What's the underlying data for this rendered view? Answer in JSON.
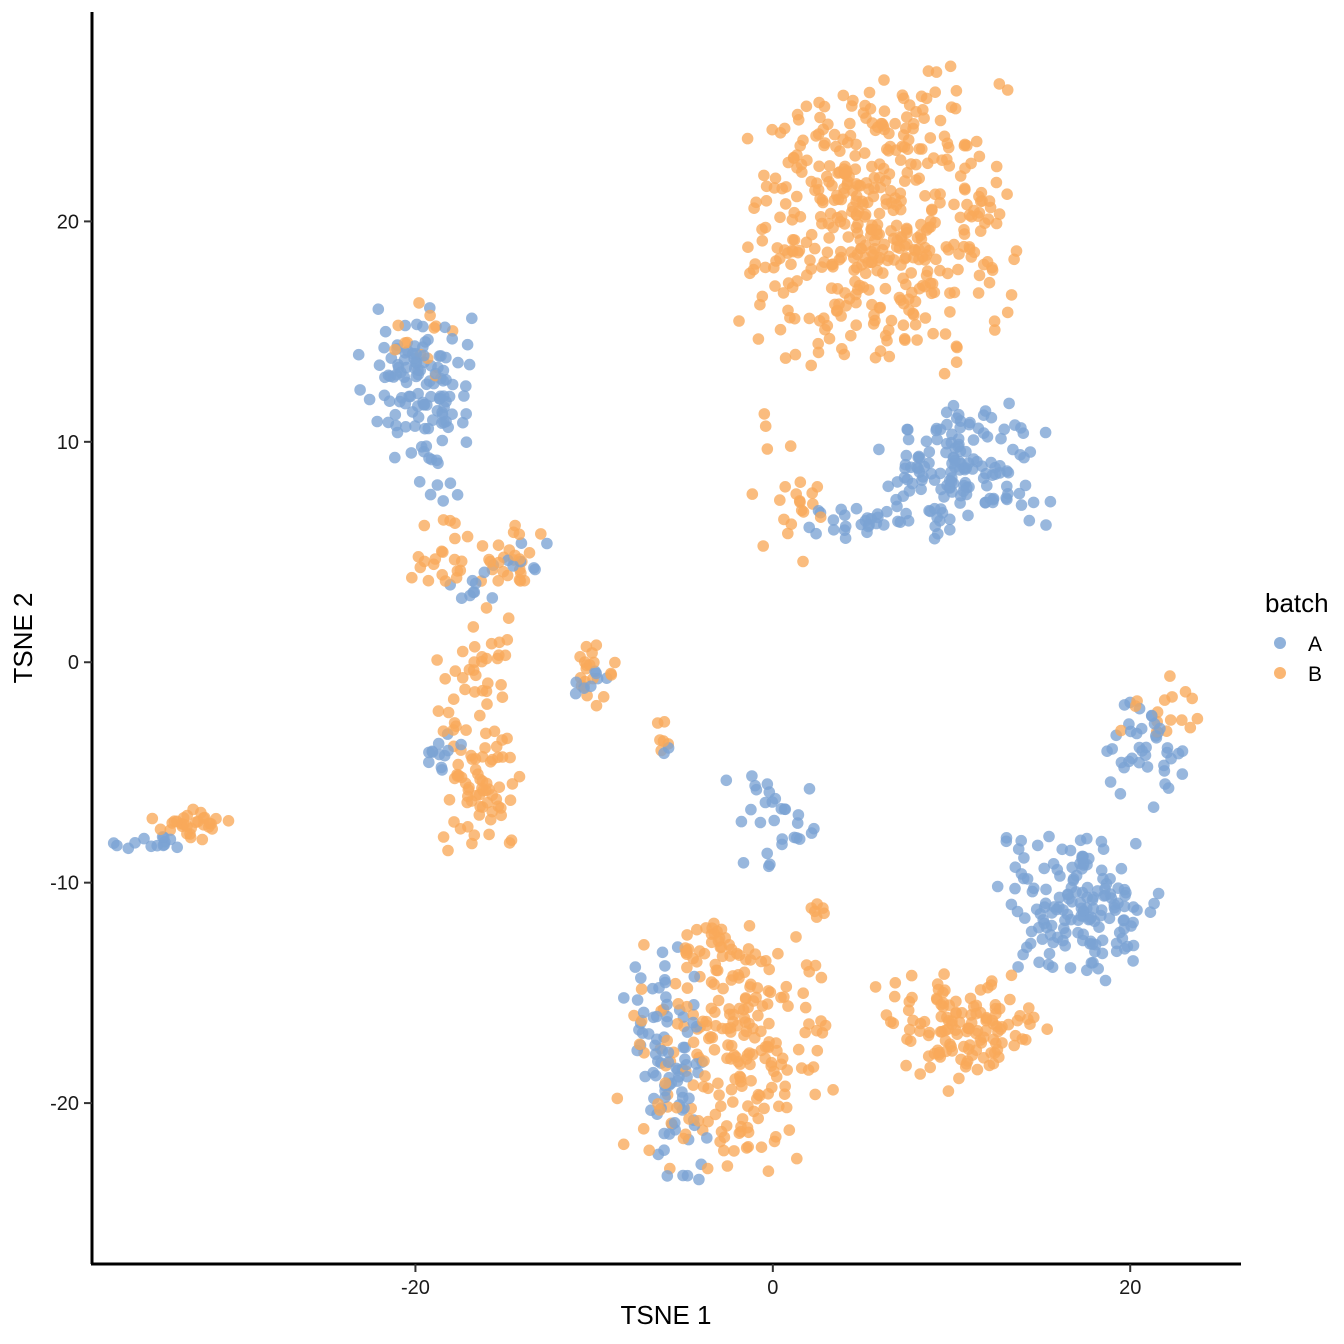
{
  "chart_data": {
    "type": "scatter",
    "xlabel": "TSNE 1",
    "ylabel": "TSNE 2",
    "xlim": [
      -38.1,
      26.2
    ],
    "ylim": [
      -27.3,
      29.5
    ],
    "xticks": [
      -20,
      0,
      20
    ],
    "yticks": [
      -20,
      -10,
      0,
      10,
      20
    ],
    "grid": false,
    "legend": {
      "title": "batch",
      "position": "right"
    },
    "series": [
      {
        "name": "A",
        "color": "#7BA3D4",
        "clusters": [
          {
            "center": [
              -19.9,
              12.9
            ],
            "spread": [
              1.5,
              1.6
            ],
            "n": 110
          },
          {
            "center": [
              -19.2,
              9.0
            ],
            "spread": [
              0.9,
              1.2
            ],
            "n": 16
          },
          {
            "center": [
              -16.6,
              3.6
            ],
            "spread": [
              1.0,
              0.7
            ],
            "n": 10
          },
          {
            "center": [
              -13.8,
              5.0
            ],
            "spread": [
              0.6,
              0.5
            ],
            "n": 7
          },
          {
            "center": [
              -18.2,
              -4.5
            ],
            "spread": [
              0.7,
              0.8
            ],
            "n": 12
          },
          {
            "center": [
              -10.1,
              -0.8
            ],
            "spread": [
              0.8,
              0.4
            ],
            "n": 8
          },
          {
            "center": [
              -6.1,
              -4.0
            ],
            "spread": [
              0.2,
              0.3
            ],
            "n": 2
          },
          {
            "center": [
              10.7,
              8.8
            ],
            "spread": [
              2.2,
              1.5
            ],
            "n": 150
          },
          {
            "center": [
              5.0,
              6.4
            ],
            "spread": [
              1.6,
              0.5
            ],
            "n": 28
          },
          {
            "center": [
              17.3,
              -11.0
            ],
            "spread": [
              2.3,
              1.6
            ],
            "n": 160
          },
          {
            "center": [
              20.8,
              -4.0
            ],
            "spread": [
              1.2,
              1.2
            ],
            "n": 40
          },
          {
            "center": [
              0.2,
              -7.0
            ],
            "spread": [
              1.8,
              1.1
            ],
            "n": 30
          },
          {
            "center": [
              -6.3,
              -15.8
            ],
            "spread": [
              1.1,
              1.5
            ],
            "n": 42
          },
          {
            "center": [
              -5.4,
              -20.5
            ],
            "spread": [
              0.8,
              1.5
            ],
            "n": 46
          },
          {
            "center": [
              -35.0,
              -8.1
            ],
            "spread": [
              1.2,
              0.25
            ],
            "n": 14
          }
        ]
      },
      {
        "name": "B",
        "color": "#F9A95A",
        "clusters": [
          {
            "center": [
              6.0,
              20.0
            ],
            "spread": [
              3.6,
              3.3
            ],
            "n": 470
          },
          {
            "center": [
              0.8,
              8.0
            ],
            "spread": [
              0.9,
              1.6
            ],
            "n": 22
          },
          {
            "center": [
              -19.2,
              14.5
            ],
            "spread": [
              1.6,
              1.2
            ],
            "n": 12
          },
          {
            "center": [
              -18.6,
              5.0
            ],
            "spread": [
              0.8,
              0.9
            ],
            "n": 22
          },
          {
            "center": [
              -14.3,
              4.8
            ],
            "spread": [
              1.0,
              0.7
            ],
            "n": 26
          },
          {
            "center": [
              -16.6,
              -0.5
            ],
            "spread": [
              1.2,
              1.5
            ],
            "n": 35
          },
          {
            "center": [
              -16.3,
              -5.5
            ],
            "spread": [
              1.1,
              1.5
            ],
            "n": 70
          },
          {
            "center": [
              -10.2,
              -0.8
            ],
            "spread": [
              0.7,
              0.8
            ],
            "n": 20
          },
          {
            "center": [
              -6.2,
              -3.5
            ],
            "spread": [
              0.2,
              0.4
            ],
            "n": 6
          },
          {
            "center": [
              -32.6,
              -7.4
            ],
            "spread": [
              1.2,
              0.35
            ],
            "n": 30
          },
          {
            "center": [
              -2.0,
              -17.5
            ],
            "spread": [
              2.7,
              2.6
            ],
            "n": 220
          },
          {
            "center": [
              -3.2,
              -12.8
            ],
            "spread": [
              1.0,
              0.6
            ],
            "n": 25
          },
          {
            "center": [
              2.4,
              -11.2
            ],
            "spread": [
              0.4,
              0.2
            ],
            "n": 6
          },
          {
            "center": [
              10.6,
              -16.6
            ],
            "spread": [
              2.3,
              1.3
            ],
            "n": 130
          },
          {
            "center": [
              21.6,
              -2.2
            ],
            "spread": [
              1.1,
              0.9
            ],
            "n": 16
          }
        ]
      }
    ]
  }
}
